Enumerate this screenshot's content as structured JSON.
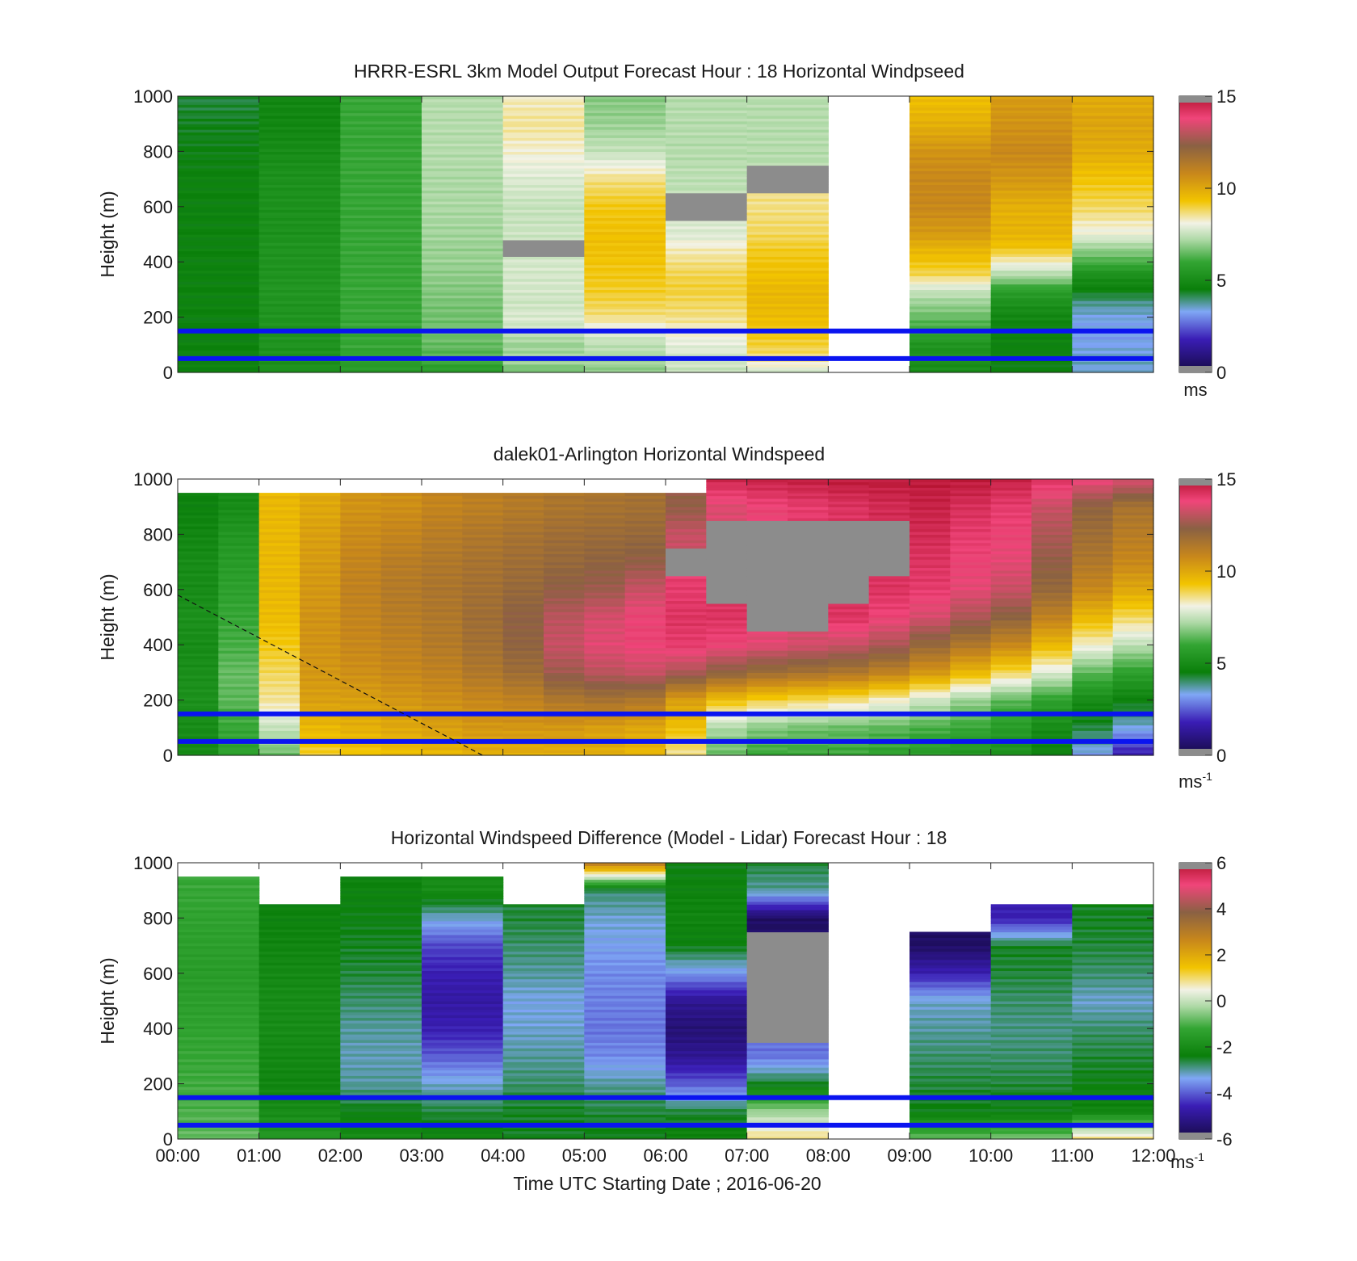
{
  "chart_data": [
    {
      "type": "heatmap",
      "title": "HRRR-ESRL 3km Model Output   Forecast Hour : 18 Horizontal Windpseed",
      "ylabel": "Height (m)",
      "ylim": [
        0,
        1000
      ],
      "yticks": [
        "0",
        "200",
        "400",
        "600",
        "800",
        "1000"
      ],
      "xlim": [
        "00:00",
        "12:00"
      ],
      "colorbar": {
        "range": [
          0,
          15
        ],
        "ticks": [
          "0",
          "5",
          "10",
          "15"
        ],
        "unit": "ms",
        "unit_sup": ""
      },
      "reference_lines_m": [
        50,
        150
      ],
      "heights": [
        0,
        50,
        100,
        150,
        200,
        250,
        300,
        350,
        400,
        450,
        500,
        600,
        700,
        800,
        900,
        1000
      ],
      "columns": [
        {
          "time": "00:00",
          "values": [
            4.6,
            4.6,
            4.6,
            4.6,
            4.6,
            4.6,
            4.6,
            4.6,
            4.6,
            4.6,
            4.6,
            4.6,
            4.6,
            4.5,
            4.4,
            4.2
          ]
        },
        {
          "time": "01:00",
          "values": [
            5.2,
            5.2,
            5.3,
            5.3,
            5.3,
            5.3,
            5.4,
            5.3,
            5.3,
            5.3,
            5.2,
            5.2,
            5.2,
            5.0,
            4.8,
            4.8
          ]
        },
        {
          "time": "02:00",
          "values": [
            5.5,
            5.8,
            6.0,
            6.0,
            6.0,
            6.0,
            6.0,
            6.0,
            6.0,
            6.0,
            6.0,
            6.0,
            6.0,
            6.0,
            6.0,
            6.0
          ]
        },
        {
          "time": "03:00",
          "values": [
            5.5,
            6.2,
            6.5,
            6.6,
            6.6,
            6.7,
            6.8,
            6.9,
            7.0,
            7.0,
            7.1,
            7.2,
            7.2,
            7.3,
            7.3,
            7.3
          ]
        },
        {
          "time": "04:00",
          "values": [
            6.5,
            7.2,
            7.0,
            7.5,
            7.8,
            7.6,
            7.7,
            7.7,
            7.7,
            null,
            7.6,
            7.5,
            7.8,
            8.2,
            8.5,
            8.3
          ]
        },
        {
          "time": "05:00",
          "values": [
            6.8,
            7.2,
            7.4,
            7.8,
            8.6,
            8.9,
            9.1,
            9.2,
            9.3,
            9.4,
            9.4,
            9.2,
            8.6,
            7.5,
            7.0,
            6.8
          ]
        },
        {
          "time": "06:00",
          "values": [
            7.5,
            7.7,
            7.9,
            8.2,
            8.6,
            8.8,
            9.0,
            8.9,
            8.6,
            8.3,
            7.8,
            null,
            7.4,
            7.3,
            7.3,
            7.3
          ]
        },
        {
          "time": "07:00",
          "values": [
            7.6,
            8.6,
            9.0,
            9.3,
            9.5,
            9.6,
            9.6,
            9.4,
            9.3,
            9.1,
            8.8,
            8.6,
            null,
            7.3,
            7.3,
            7.3
          ]
        },
        {
          "time": "08:00",
          "values": [
            null,
            null,
            null,
            null,
            null,
            null,
            null,
            null,
            null,
            null,
            null,
            null,
            null,
            null,
            null,
            null
          ]
        },
        {
          "time": "09:00",
          "values": [
            5.0,
            5.2,
            5.3,
            6.0,
            6.5,
            7.0,
            7.6,
            8.8,
            9.3,
            9.7,
            10.3,
            10.8,
            10.8,
            10.5,
            9.8,
            9.4
          ]
        },
        {
          "time": "10:00",
          "values": [
            4.5,
            4.6,
            4.6,
            4.7,
            4.8,
            5.2,
            5.8,
            7.2,
            8.2,
            9.3,
            9.7,
            9.8,
            10.4,
            10.8,
            10.5,
            10.3
          ]
        },
        {
          "time": "11:00",
          "values": [
            3.4,
            3.6,
            3.3,
            3.2,
            3.4,
            3.8,
            4.6,
            5.1,
            6.2,
            7.0,
            8.0,
            8.8,
            9.3,
            9.9,
            10.1,
            9.9
          ]
        }
      ]
    },
    {
      "type": "heatmap",
      "title": "dalek01-Arlington  Horizontal Windspeed",
      "ylabel": "Height (m)",
      "ylim": [
        0,
        1000
      ],
      "yticks": [
        "0",
        "200",
        "400",
        "600",
        "800",
        "1000"
      ],
      "xlim": [
        "00:00",
        "12:00"
      ],
      "colorbar": {
        "range": [
          0,
          15
        ],
        "ticks": [
          "0",
          "5",
          "10",
          "15"
        ],
        "unit": "ms",
        "unit_sup": "-1"
      },
      "reference_lines_m": [
        50,
        150
      ],
      "dashed_line_m": {
        "from": [
          0.0,
          580
        ],
        "to": [
          3.75,
          0
        ]
      },
      "heights": [
        0,
        100,
        200,
        300,
        400,
        500,
        600,
        700,
        800,
        900,
        1000
      ],
      "columns": [
        {
          "time": "00:00",
          "values": [
            5.0,
            5.0,
            5.2,
            5.1,
            5.0,
            5.2,
            5.0,
            5.0,
            4.8,
            4.6,
            null
          ]
        },
        {
          "time": "00:30",
          "values": [
            5.8,
            6.0,
            6.4,
            6.5,
            6.2,
            6.0,
            5.8,
            5.6,
            5.4,
            5.0,
            null
          ]
        },
        {
          "time": "01:00",
          "values": [
            6.5,
            7.5,
            8.5,
            8.8,
            9.2,
            9.5,
            9.6,
            9.6,
            9.6,
            9.6,
            null
          ]
        },
        {
          "time": "01:30",
          "values": [
            9.0,
            9.6,
            10.2,
            10.4,
            10.5,
            10.5,
            10.4,
            10.3,
            10.2,
            10.0,
            null
          ]
        },
        {
          "time": "02:00",
          "values": [
            9.2,
            9.8,
            10.2,
            10.6,
            10.8,
            10.9,
            11.0,
            10.9,
            10.7,
            10.5,
            null
          ]
        },
        {
          "time": "02:30",
          "values": [
            9.4,
            10.0,
            10.4,
            10.8,
            11.0,
            11.2,
            11.3,
            11.2,
            10.9,
            10.6,
            null
          ]
        },
        {
          "time": "03:00",
          "values": [
            9.6,
            10.2,
            10.6,
            11.0,
            11.3,
            11.4,
            11.5,
            11.4,
            11.2,
            10.9,
            null
          ]
        },
        {
          "time": "03:30",
          "values": [
            9.8,
            10.4,
            10.8,
            11.4,
            11.7,
            11.8,
            11.7,
            11.6,
            11.4,
            11.1,
            null
          ]
        },
        {
          "time": "04:00",
          "values": [
            9.8,
            10.4,
            11.0,
            11.8,
            12.2,
            12.3,
            12.0,
            11.8,
            11.6,
            11.3,
            null
          ]
        },
        {
          "time": "04:30",
          "values": [
            9.8,
            10.4,
            11.4,
            12.6,
            13.2,
            13.0,
            12.4,
            12.0,
            11.8,
            11.5,
            null
          ]
        },
        {
          "time": "05:00",
          "values": [
            9.8,
            10.2,
            11.6,
            13.0,
            13.6,
            13.4,
            12.6,
            12.2,
            11.9,
            11.6,
            null
          ]
        },
        {
          "time": "05:30",
          "values": [
            9.6,
            10.0,
            11.4,
            13.2,
            13.8,
            13.8,
            13.2,
            12.4,
            12.0,
            11.7,
            null
          ]
        },
        {
          "time": "06:00",
          "values": [
            8.5,
            9.4,
            10.2,
            12.8,
            14.0,
            14.2,
            14.0,
            null,
            13.2,
            12.4,
            null
          ]
        },
        {
          "time": "06:30",
          "values": [
            6.5,
            7.2,
            9.4,
            12.2,
            13.8,
            14.2,
            null,
            null,
            null,
            13.5,
            14.5
          ]
        },
        {
          "time": "07:00",
          "values": [
            6.0,
            6.8,
            9.0,
            11.8,
            13.6,
            null,
            null,
            null,
            null,
            13.8,
            14.6
          ]
        },
        {
          "time": "07:30",
          "values": [
            6.0,
            6.6,
            8.8,
            11.6,
            13.4,
            null,
            null,
            null,
            null,
            14.0,
            14.7
          ]
        },
        {
          "time": "08:00",
          "values": [
            6.0,
            6.5,
            8.6,
            11.4,
            13.2,
            14.2,
            null,
            null,
            null,
            14.2,
            14.8
          ]
        },
        {
          "time": "08:30",
          "values": [
            5.8,
            6.4,
            8.2,
            11.0,
            12.8,
            13.8,
            14.2,
            null,
            null,
            14.4,
            14.8
          ]
        },
        {
          "time": "09:00",
          "values": [
            5.6,
            6.2,
            7.6,
            10.4,
            12.0,
            13.4,
            14.0,
            14.2,
            14.4,
            14.6,
            14.8
          ]
        },
        {
          "time": "09:30",
          "values": [
            5.4,
            6.0,
            7.0,
            9.6,
            11.4,
            12.8,
            13.6,
            13.8,
            14.0,
            14.3,
            14.8
          ]
        },
        {
          "time": "10:00",
          "values": [
            5.2,
            5.6,
            6.4,
            8.8,
            10.8,
            12.2,
            13.2,
            13.6,
            13.8,
            14.0,
            14.6
          ]
        },
        {
          "time": "10:30",
          "values": [
            4.6,
            5.0,
            5.8,
            7.8,
            9.6,
            11.0,
            12.0,
            12.4,
            12.8,
            13.2,
            14.2
          ]
        },
        {
          "time": "11:00",
          "values": [
            3.2,
            4.2,
            5.0,
            6.4,
            8.2,
            9.6,
            10.8,
            11.4,
            11.8,
            12.2,
            13.8
          ]
        },
        {
          "time": "11:30",
          "values": [
            1.6,
            3.4,
            4.6,
            5.8,
            7.4,
            8.8,
            10.0,
            10.8,
            11.2,
            11.6,
            13.5
          ]
        }
      ]
    },
    {
      "type": "heatmap",
      "title": "Horizontal Windspeed Difference (Model - Lidar) Forecast Hour : 18",
      "ylabel": "Height (m)",
      "xlabel": "Time UTC  Starting Date ; 2016-06-20",
      "ylim": [
        0,
        1000
      ],
      "yticks": [
        "0",
        "200",
        "400",
        "600",
        "800",
        "1000"
      ],
      "xticks": [
        "00:00",
        "01:00",
        "02:00",
        "03:00",
        "04:00",
        "05:00",
        "06:00",
        "07:00",
        "08:00",
        "09:00",
        "10:00",
        "11:00",
        "12:00"
      ],
      "colorbar": {
        "range": [
          -6,
          6
        ],
        "ticks": [
          "-6",
          "-4",
          "-2",
          "0",
          "2",
          "4",
          "6"
        ],
        "unit": "ms",
        "unit_sup": "-1"
      },
      "reference_lines_m": [
        50,
        150
      ],
      "heights": [
        0,
        100,
        200,
        300,
        400,
        500,
        600,
        700,
        800,
        900,
        1000
      ],
      "columns": [
        {
          "time": "00:00",
          "values": [
            -0.8,
            -1.0,
            -1.1,
            -1.2,
            -1.3,
            -1.4,
            -1.5,
            -1.4,
            -1.3,
            -1.2,
            null
          ]
        },
        {
          "time": "01:00",
          "values": [
            -1.6,
            -2.0,
            -2.2,
            -2.1,
            -2.0,
            -2.0,
            -2.1,
            -2.2,
            -2.3,
            null,
            null
          ]
        },
        {
          "time": "02:00",
          "values": [
            -2.0,
            -2.4,
            -3.0,
            -3.1,
            -3.0,
            -2.8,
            -2.6,
            -2.5,
            -2.4,
            -2.3,
            null
          ]
        },
        {
          "time": "03:00",
          "values": [
            -2.2,
            -2.6,
            -3.2,
            -4.0,
            -4.6,
            -4.8,
            -4.6,
            -4.2,
            -3.2,
            -2.0,
            null
          ]
        },
        {
          "time": "04:00",
          "values": [
            -2.5,
            -2.5,
            -2.8,
            -3.0,
            -3.2,
            -3.3,
            -3.0,
            -2.8,
            -2.6,
            null,
            null
          ]
        },
        {
          "time": "05:00",
          "values": [
            -2.4,
            -2.6,
            -3.0,
            -3.6,
            -3.8,
            -3.7,
            -3.6,
            -3.4,
            -3.2,
            -2.8,
            3.0
          ]
        },
        {
          "time": "06:00",
          "values": [
            -2.2,
            -2.6,
            -4.0,
            -5.0,
            -5.4,
            -5.0,
            -3.5,
            -2.4,
            -2.2,
            -2.3,
            -2.4
          ]
        },
        {
          "time": "07:00",
          "values": [
            1.0,
            -0.4,
            -2.5,
            -3.8,
            null,
            null,
            null,
            null,
            -5.6,
            -3.0,
            -2.6
          ]
        },
        {
          "time": "08:00",
          "values": [
            null,
            null,
            null,
            null,
            null,
            null,
            null,
            null,
            null,
            null,
            null
          ]
        },
        {
          "time": "09:00",
          "values": [
            -0.8,
            -2.4,
            -2.6,
            -2.8,
            -3.0,
            -3.2,
            -4.6,
            -5.6,
            null,
            null,
            null
          ]
        },
        {
          "time": "10:00",
          "values": [
            -0.6,
            -2.4,
            -2.6,
            -2.8,
            -2.9,
            -2.8,
            -2.6,
            -2.5,
            -4.6,
            null,
            null
          ]
        },
        {
          "time": "11:00",
          "values": [
            1.0,
            -2.2,
            -2.4,
            -2.6,
            -2.8,
            -3.2,
            -2.8,
            -2.6,
            -2.5,
            null,
            null
          ]
        }
      ]
    }
  ]
}
